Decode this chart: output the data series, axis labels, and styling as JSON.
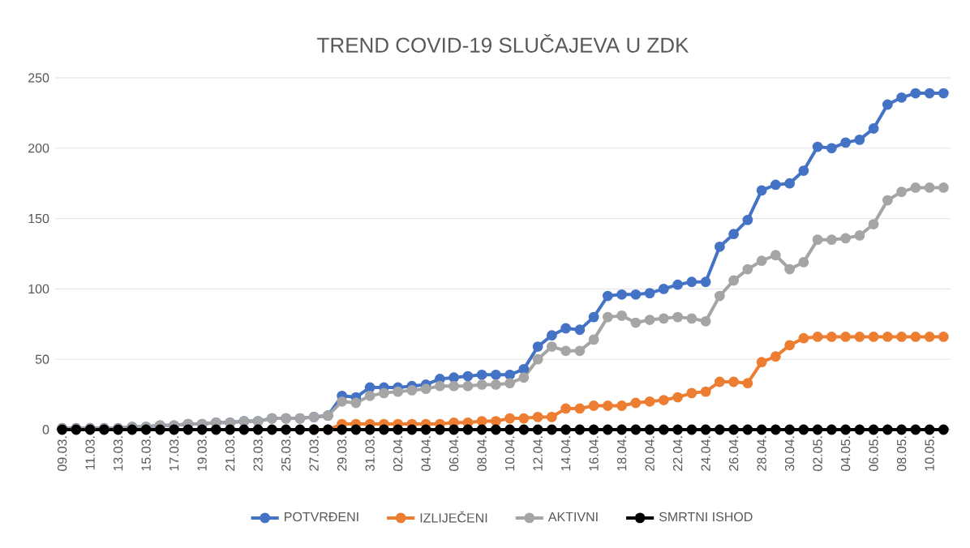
{
  "chart_data": {
    "type": "line",
    "title": "TREND COVID-19 SLUČAJEVA U ZDK",
    "categories": [
      "09.03.",
      null,
      "11.03.",
      null,
      "13.03.",
      null,
      "15.03.",
      null,
      "17.03.",
      null,
      "19.03.",
      null,
      "21.03.",
      null,
      "23.03.",
      null,
      "25.03.",
      null,
      "27.03.",
      null,
      "29.03.",
      null,
      "31.03.",
      null,
      "02.04.",
      null,
      "04.04.",
      null,
      "06.04.",
      null,
      "08.04.",
      null,
      "10.04.",
      null,
      "12.04.",
      null,
      "14.04.",
      null,
      "16.04.",
      null,
      "18.04.",
      null,
      "20.04.",
      null,
      "22.04.",
      null,
      "24.04.",
      null,
      "26.04.",
      null,
      "28.04.",
      null,
      "30.04.",
      null,
      "02.05.",
      null,
      "04.05.",
      null,
      "06.05.",
      null,
      "08.05.",
      null,
      "10.05.",
      null
    ],
    "series": [
      {
        "name": "POTVRĐENI",
        "color": "#4472c4",
        "values": [
          1,
          1,
          1,
          1,
          1,
          2,
          2,
          3,
          3,
          4,
          4,
          5,
          5,
          6,
          6,
          8,
          8,
          8,
          9,
          10,
          24,
          23,
          30,
          30,
          30,
          31,
          32,
          36,
          37,
          38,
          39,
          39,
          39,
          43,
          59,
          67,
          72,
          71,
          80,
          95,
          96,
          96,
          97,
          100,
          103,
          105,
          105,
          130,
          139,
          149,
          170,
          174,
          175,
          184,
          201,
          200,
          204,
          206,
          214,
          231,
          236,
          239,
          239,
          239
        ]
      },
      {
        "name": "IZLIJEČENI",
        "color": "#ed7d31",
        "values": [
          null,
          null,
          null,
          null,
          null,
          null,
          null,
          null,
          null,
          null,
          null,
          null,
          null,
          null,
          null,
          null,
          null,
          null,
          0,
          0,
          4,
          4,
          4,
          4,
          4,
          4,
          4,
          4,
          5,
          5,
          6,
          6,
          8,
          8,
          9,
          9,
          15,
          15,
          17,
          17,
          17,
          19,
          20,
          21,
          23,
          26,
          27,
          34,
          34,
          33,
          48,
          52,
          60,
          65,
          66,
          66,
          66,
          66,
          66,
          66,
          66,
          66,
          66,
          66
        ]
      },
      {
        "name": "AKTIVNI",
        "color": "#a5a5a5",
        "values": [
          1,
          1,
          1,
          1,
          1,
          2,
          2,
          3,
          3,
          4,
          4,
          5,
          5,
          6,
          6,
          8,
          8,
          8,
          9,
          10,
          20,
          19,
          24,
          26,
          27,
          28,
          29,
          31,
          31,
          31,
          32,
          32,
          33,
          37,
          50,
          59,
          56,
          56,
          64,
          80,
          81,
          76,
          78,
          79,
          80,
          79,
          77,
          95,
          106,
          114,
          120,
          124,
          114,
          119,
          135,
          135,
          136,
          138,
          146,
          163,
          169,
          172,
          172,
          172
        ]
      },
      {
        "name": "SMRTNI ISHOD",
        "color": "#000000",
        "values": [
          0,
          0,
          0,
          0,
          0,
          0,
          0,
          0,
          0,
          0,
          0,
          0,
          0,
          0,
          0,
          0,
          0,
          0,
          0,
          0,
          0,
          0,
          0,
          0,
          0,
          0,
          0,
          0,
          0,
          0,
          0,
          0,
          0,
          0,
          0,
          0,
          0,
          0,
          0,
          0,
          0,
          0,
          0,
          0,
          0,
          0,
          0,
          0,
          0,
          0,
          0,
          0,
          0,
          0,
          0,
          0,
          0,
          0,
          0,
          0,
          0,
          0,
          0,
          0
        ]
      }
    ],
    "ylim": [
      0,
      250
    ],
    "yticks": [
      0,
      50,
      100,
      150,
      200,
      250
    ],
    "grid": "y",
    "legend": "bottom",
    "marker": "circle",
    "line_style": "solid"
  }
}
